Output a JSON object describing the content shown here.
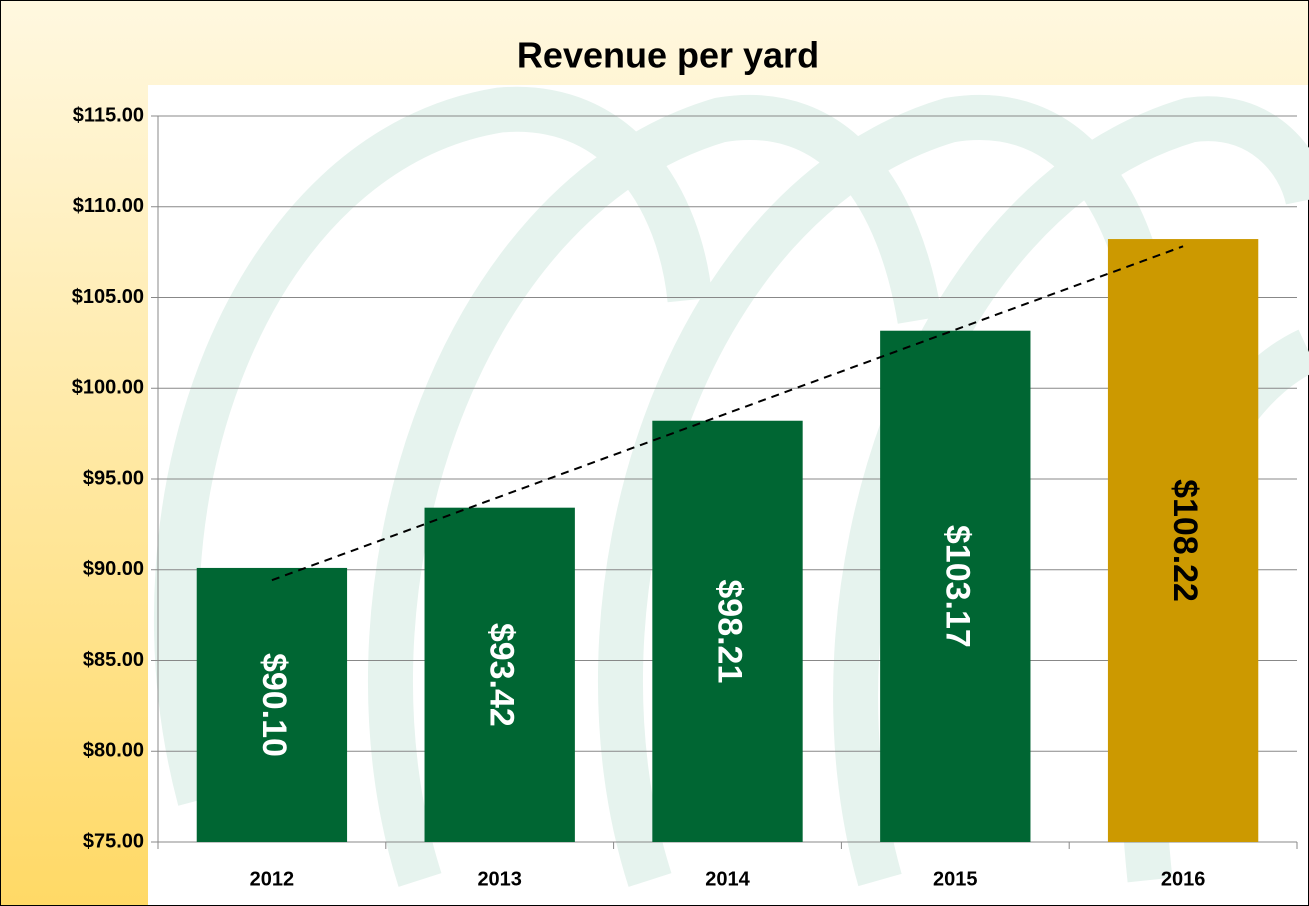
{
  "chart_data": {
    "type": "bar",
    "title": "Revenue per yard",
    "categories": [
      "2012",
      "2013",
      "2014",
      "2015",
      "2016"
    ],
    "values": [
      90.1,
      93.42,
      98.21,
      103.17,
      108.22
    ],
    "value_labels": [
      "$90.10",
      "$93.42",
      "$98.21",
      "$103.17",
      "$108.22"
    ],
    "colors": [
      "#006633",
      "#006633",
      "#006633",
      "#006633",
      "#cc9900"
    ],
    "label_colors": [
      "#ffffff",
      "#ffffff",
      "#ffffff",
      "#ffffff",
      "#000000"
    ],
    "ylim": [
      75,
      115
    ],
    "yticks": [
      {
        "value": 75,
        "label": "$75.00"
      },
      {
        "value": 80,
        "label": "$80.00"
      },
      {
        "value": 85,
        "label": "$85.00"
      },
      {
        "value": 90,
        "label": "$90.00"
      },
      {
        "value": 95,
        "label": "$95.00"
      },
      {
        "value": 100,
        "label": "$100.00"
      },
      {
        "value": 105,
        "label": "$105.00"
      },
      {
        "value": 110,
        "label": "$110.00"
      },
      {
        "value": 115,
        "label": "$115.00"
      }
    ],
    "grid": true,
    "trendline": true
  }
}
